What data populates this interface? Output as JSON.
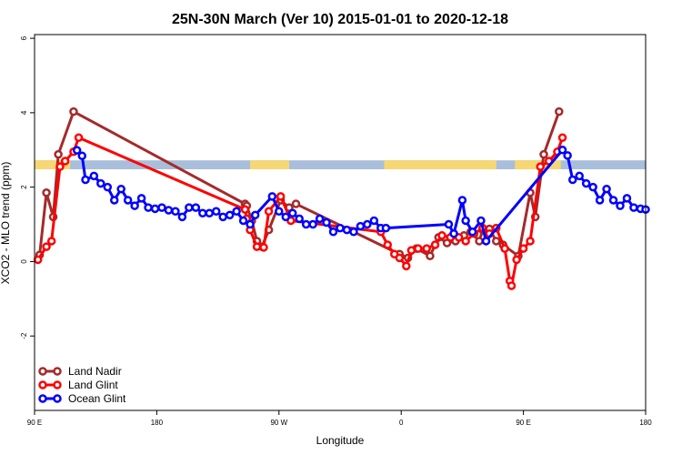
{
  "chart_data": {
    "type": "line",
    "title": "25N-30N March (Ver 10)   2015-01-01 to 2020-12-18",
    "xlabel": "Longitude",
    "ylabel": "XCO2 - MLO trend (ppm)",
    "xlim": [
      0,
      360
    ],
    "ylim": [
      -4,
      6.1
    ],
    "x_ticks": [
      {
        "value": 0,
        "label": "90 E"
      },
      {
        "value": 72,
        "label": "180"
      },
      {
        "value": 144,
        "label": "90 W"
      },
      {
        "value": 216,
        "label": "0"
      },
      {
        "value": 288,
        "label": "90 E"
      },
      {
        "value": 360,
        "label": "180"
      }
    ],
    "y_ticks": [
      -2,
      0,
      2,
      4,
      6
    ],
    "legend_position": "bottom-left",
    "land_band": {
      "y_range": [
        2.48,
        2.72
      ],
      "ocean_color": "#a8bedb",
      "land_color": "#f7d774",
      "land_segments": [
        [
          0,
          21
        ],
        [
          127,
          150
        ],
        [
          206,
          272
        ],
        [
          283,
          310
        ]
      ]
    },
    "series": [
      {
        "name": "Land Nadir",
        "color": "#a52a2a",
        "points": [
          [
            3,
            0.18
          ],
          [
            7,
            1.85
          ],
          [
            11,
            1.2
          ],
          [
            14,
            2.88
          ],
          [
            23,
            4.03
          ],
          [
            124,
            1.55
          ],
          [
            125,
            1.5
          ],
          [
            128,
            1.1
          ],
          [
            131,
            0.55
          ],
          [
            134,
            0.4
          ],
          [
            138,
            0.85
          ],
          [
            145,
            1.65
          ],
          [
            150,
            1.45
          ],
          [
            154,
            1.55
          ],
          [
            215,
            0.2
          ],
          [
            220,
            0.1
          ],
          [
            225,
            0.35
          ],
          [
            233,
            0.15
          ],
          [
            238,
            0.65
          ],
          [
            243,
            0.5
          ],
          [
            248,
            0.55
          ],
          [
            253,
            0.7
          ],
          [
            257,
            0.8
          ],
          [
            262,
            0.55
          ],
          [
            264,
            0.85
          ],
          [
            268,
            0.88
          ],
          [
            272,
            0.55
          ],
          [
            276,
            0.45
          ],
          [
            285,
            0.15
          ],
          [
            292,
            1.85
          ],
          [
            295,
            1.2
          ],
          [
            300,
            2.88
          ],
          [
            309,
            4.03
          ]
        ]
      },
      {
        "name": "Land Glint",
        "color": "#ff0000",
        "points": [
          [
            2,
            0.05
          ],
          [
            7,
            0.4
          ],
          [
            10,
            0.55
          ],
          [
            15,
            2.55
          ],
          [
            18,
            2.7
          ],
          [
            23,
            2.95
          ],
          [
            26,
            3.33
          ],
          [
            124,
            1.4
          ],
          [
            125,
            1.15
          ],
          [
            127,
            0.85
          ],
          [
            131,
            0.4
          ],
          [
            135,
            0.38
          ],
          [
            138,
            1.35
          ],
          [
            145,
            1.75
          ],
          [
            151,
            1.1
          ],
          [
            204,
            0.8
          ],
          [
            208,
            0.45
          ],
          [
            212,
            0.2
          ],
          [
            215,
            0.1
          ],
          [
            219,
            -0.12
          ],
          [
            222,
            0.3
          ],
          [
            226,
            0.35
          ],
          [
            231,
            0.35
          ],
          [
            236,
            0.45
          ],
          [
            240,
            0.7
          ],
          [
            245,
            0.65
          ],
          [
            250,
            0.65
          ],
          [
            254,
            0.55
          ],
          [
            259,
            0.75
          ],
          [
            264,
            0.9
          ],
          [
            268,
            0.75
          ],
          [
            272,
            0.9
          ],
          [
            277,
            0.35
          ],
          [
            280,
            -0.52
          ],
          [
            281,
            -0.65
          ],
          [
            284,
            0.05
          ],
          [
            288,
            0.35
          ],
          [
            292,
            0.55
          ],
          [
            298,
            2.55
          ],
          [
            303,
            2.7
          ],
          [
            308,
            2.95
          ],
          [
            311,
            3.33
          ]
        ]
      },
      {
        "name": "Ocean Glint",
        "color": "#0000ff",
        "points": [
          [
            25,
            2.99
          ],
          [
            28,
            2.84
          ],
          [
            30,
            2.2
          ],
          [
            35,
            2.3
          ],
          [
            39,
            2.1
          ],
          [
            43,
            2.0
          ],
          [
            47,
            1.65
          ],
          [
            51,
            1.95
          ],
          [
            55,
            1.65
          ],
          [
            59,
            1.5
          ],
          [
            63,
            1.7
          ],
          [
            67,
            1.45
          ],
          [
            71,
            1.42
          ],
          [
            75,
            1.45
          ],
          [
            79,
            1.38
          ],
          [
            83,
            1.35
          ],
          [
            87,
            1.2
          ],
          [
            91,
            1.45
          ],
          [
            95,
            1.45
          ],
          [
            99,
            1.3
          ],
          [
            103,
            1.3
          ],
          [
            107,
            1.35
          ],
          [
            111,
            1.2
          ],
          [
            115,
            1.25
          ],
          [
            119,
            1.35
          ],
          [
            123,
            1.1
          ],
          [
            127,
            1.0
          ],
          [
            130,
            1.25
          ],
          [
            140,
            1.75
          ],
          [
            144,
            1.35
          ],
          [
            148,
            1.2
          ],
          [
            152,
            1.3
          ],
          [
            156,
            1.15
          ],
          [
            160,
            1.0
          ],
          [
            164,
            1.0
          ],
          [
            168,
            1.15
          ],
          [
            172,
            1.05
          ],
          [
            176,
            0.8
          ],
          [
            180,
            0.9
          ],
          [
            184,
            0.85
          ],
          [
            188,
            0.8
          ],
          [
            192,
            0.95
          ],
          [
            196,
            1.0
          ],
          [
            200,
            1.1
          ],
          [
            204,
            0.9
          ],
          [
            207,
            0.9
          ],
          [
            244,
            1.0
          ],
          [
            247,
            0.75
          ],
          [
            252,
            1.65
          ],
          [
            254,
            1.1
          ],
          [
            258,
            0.8
          ],
          [
            263,
            1.1
          ],
          [
            266,
            0.55
          ],
          [
            311,
            3.0
          ],
          [
            314,
            2.85
          ],
          [
            317,
            2.2
          ],
          [
            321,
            2.3
          ],
          [
            325,
            2.1
          ],
          [
            329,
            2.0
          ],
          [
            333,
            1.65
          ],
          [
            337,
            1.95
          ],
          [
            341,
            1.65
          ],
          [
            345,
            1.5
          ],
          [
            349,
            1.7
          ],
          [
            353,
            1.45
          ],
          [
            357,
            1.42
          ],
          [
            360,
            1.4
          ]
        ]
      }
    ]
  }
}
